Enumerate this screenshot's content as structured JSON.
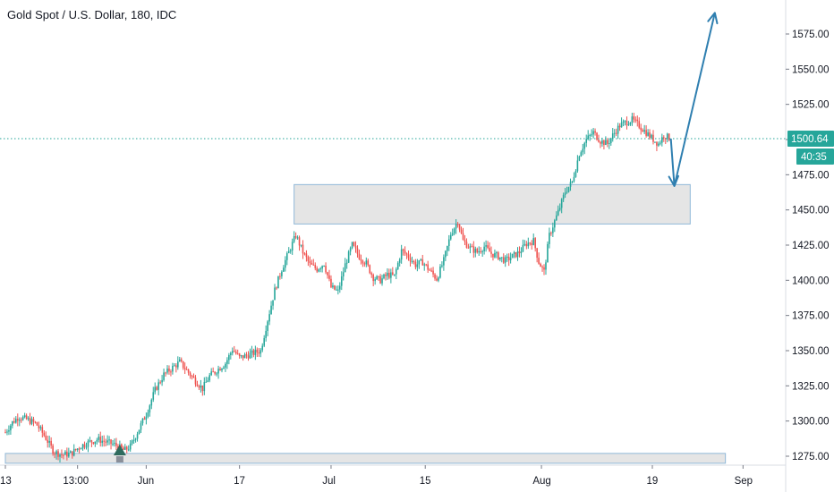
{
  "title": "Gold Spot / U.S. Dollar, 180, IDC",
  "colors": {
    "up": "#26a69a",
    "down": "#ef5350",
    "current_price": "#26a69a",
    "zone_fill": "#e0e0e0",
    "zone_border": "#90b8d8",
    "arrow": "#2f7fb0",
    "marker": "#2f6b5e",
    "axis_text": "#131722",
    "axis_line": "#d9dce3"
  },
  "chart_data": {
    "type": "candlestick",
    "symbol": "Gold Spot / U.S. Dollar",
    "interval": "180",
    "source": "IDC",
    "ylim": [
      1270,
      1600
    ],
    "y_ticks": [
      1275,
      1300,
      1325,
      1350,
      1375,
      1400,
      1425,
      1450,
      1475,
      1500,
      1525,
      1550,
      1575
    ],
    "y_tick_labels": [
      "1275.00",
      "1300.00",
      "1325.00",
      "1350.00",
      "1375.00",
      "1400.00",
      "1425.00",
      "1450.00",
      "1475.00",
      "1500.00",
      "1525.00",
      "1550.00",
      "1575.00"
    ],
    "x_ticks": [
      {
        "label": "13",
        "t": 0
      },
      {
        "label": "13:00",
        "t": 82
      },
      {
        "label": "Jun",
        "t": 160
      },
      {
        "label": "17",
        "t": 266
      },
      {
        "label": "Jul",
        "t": 370
      },
      {
        "label": "15",
        "t": 477
      },
      {
        "label": "Aug",
        "t": 609
      },
      {
        "label": "19",
        "t": 735
      },
      {
        "label": "Sep",
        "t": 838
      }
    ],
    "current_price": 1500.64,
    "countdown": "40:35",
    "price_path": [
      [
        0,
        1292
      ],
      [
        8,
        1299
      ],
      [
        15,
        1303
      ],
      [
        25,
        1301
      ],
      [
        35,
        1298
      ],
      [
        45,
        1289
      ],
      [
        55,
        1278
      ],
      [
        65,
        1276
      ],
      [
        75,
        1277
      ],
      [
        85,
        1282
      ],
      [
        95,
        1285
      ],
      [
        105,
        1287
      ],
      [
        115,
        1285
      ],
      [
        125,
        1283
      ],
      [
        135,
        1279
      ],
      [
        142,
        1282
      ],
      [
        150,
        1292
      ],
      [
        160,
        1305
      ],
      [
        170,
        1322
      ],
      [
        180,
        1333
      ],
      [
        190,
        1338
      ],
      [
        198,
        1342
      ],
      [
        206,
        1336
      ],
      [
        214,
        1330
      ],
      [
        224,
        1323
      ],
      [
        232,
        1332
      ],
      [
        240,
        1336
      ],
      [
        250,
        1341
      ],
      [
        258,
        1351
      ],
      [
        266,
        1345
      ],
      [
        276,
        1347
      ],
      [
        290,
        1350
      ],
      [
        298,
        1372
      ],
      [
        306,
        1393
      ],
      [
        314,
        1408
      ],
      [
        322,
        1420
      ],
      [
        330,
        1432
      ],
      [
        338,
        1420
      ],
      [
        346,
        1411
      ],
      [
        354,
        1408
      ],
      [
        362,
        1412
      ],
      [
        370,
        1395
      ],
      [
        378,
        1392
      ],
      [
        386,
        1411
      ],
      [
        394,
        1425
      ],
      [
        402,
        1417
      ],
      [
        410,
        1412
      ],
      [
        418,
        1402
      ],
      [
        426,
        1400
      ],
      [
        434,
        1404
      ],
      [
        442,
        1403
      ],
      [
        450,
        1421
      ],
      [
        458,
        1417
      ],
      [
        466,
        1411
      ],
      [
        474,
        1413
      ],
      [
        482,
        1407
      ],
      [
        490,
        1401
      ],
      [
        498,
        1414
      ],
      [
        506,
        1433
      ],
      [
        514,
        1442
      ],
      [
        520,
        1428
      ],
      [
        528,
        1423
      ],
      [
        536,
        1420
      ],
      [
        544,
        1424
      ],
      [
        552,
        1419
      ],
      [
        560,
        1417
      ],
      [
        568,
        1414
      ],
      [
        576,
        1417
      ],
      [
        584,
        1420
      ],
      [
        592,
        1426
      ],
      [
        600,
        1428
      ],
      [
        606,
        1413
      ],
      [
        612,
        1406
      ],
      [
        618,
        1432
      ],
      [
        624,
        1442
      ],
      [
        630,
        1452
      ],
      [
        636,
        1463
      ],
      [
        644,
        1470
      ],
      [
        652,
        1490
      ],
      [
        660,
        1500
      ],
      [
        668,
        1505
      ],
      [
        676,
        1499
      ],
      [
        684,
        1497
      ],
      [
        690,
        1503
      ],
      [
        698,
        1510
      ],
      [
        704,
        1512
      ],
      [
        712,
        1514
      ],
      [
        720,
        1510
      ],
      [
        728,
        1505
      ],
      [
        736,
        1500
      ],
      [
        742,
        1497
      ],
      [
        748,
        1503
      ],
      [
        756,
        1500.64
      ]
    ],
    "annotations": {
      "resistance_zone": {
        "t_start": 328,
        "t_end": 778,
        "price_low": 1440,
        "price_high": 1468
      },
      "support_zone": {
        "t_start": 0,
        "t_end": 818,
        "price_low": 1270,
        "price_high": 1277
      },
      "projection_arrow": [
        [
          756,
          1500.64
        ],
        [
          760,
          1467
        ],
        [
          806,
          1590
        ]
      ],
      "buy_marker": {
        "t": 130,
        "price": 1282
      }
    }
  }
}
